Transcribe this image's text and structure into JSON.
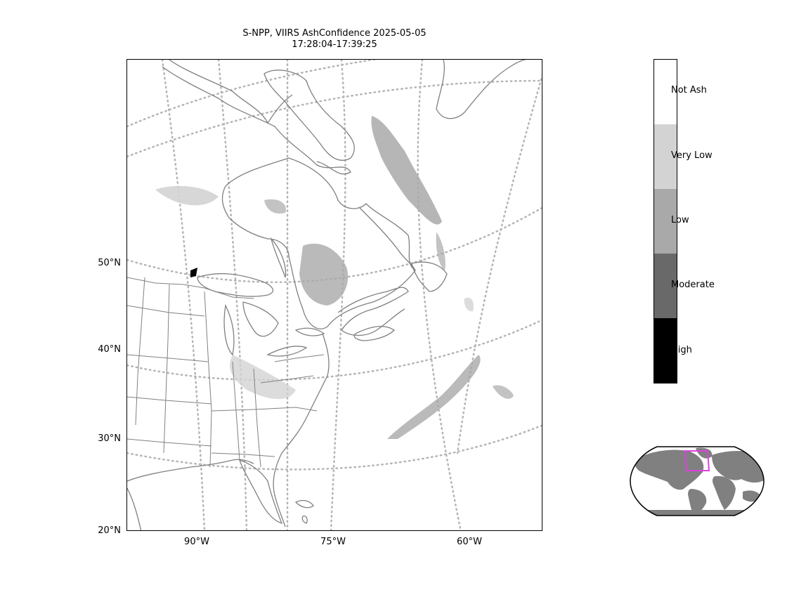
{
  "title": {
    "line1": "S-NPP, VIIRS AshConfidence 2025-05-05",
    "line2": "17:28:04-17:39:25"
  },
  "map": {
    "lat_labels": [
      "50°N",
      "40°N",
      "30°N",
      "20°N"
    ],
    "lon_labels": [
      "90°W",
      "75°W",
      "60°W"
    ],
    "graticule_style": "dotted gray",
    "land_outline_color": "#808080"
  },
  "colorbar": {
    "categories": [
      {
        "label": "Not Ash",
        "color": "#ffffff"
      },
      {
        "label": "Very Low",
        "color": "#d3d3d3"
      },
      {
        "label": "Low",
        "color": "#a9a9a9"
      },
      {
        "label": "Moderate",
        "color": "#696969"
      },
      {
        "label": "High",
        "color": "#000000"
      }
    ]
  },
  "inset": {
    "land_color": "#808080",
    "region_box_color": "#e040e0"
  }
}
